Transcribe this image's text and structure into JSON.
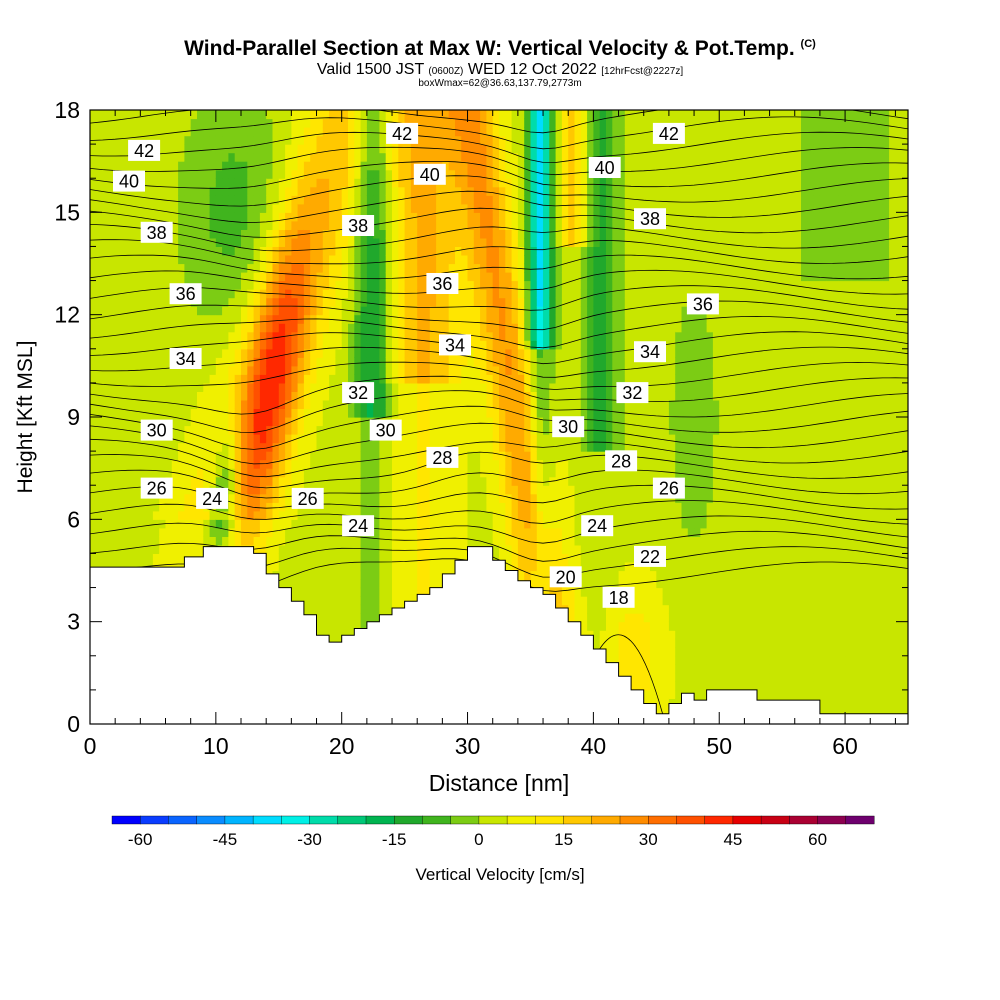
{
  "title": {
    "main": "Wind-Parallel Section at Max W: Vertical Velocity & Pot.Temp.",
    "copyright": "(C)",
    "valid_prefix": "Valid 1500 JST",
    "valid_utc": "(0600Z)",
    "valid_date": "WED 12 Oct 2022",
    "forecast": "[12hrFcst@2227z]",
    "box_info": "boxWmax=62@36.63,137.79,2773m"
  },
  "chart_data": {
    "type": "heatmap",
    "xlabel": "Distance [nm]",
    "ylabel": "Height [Kft MSL]",
    "xlim": [
      0,
      65
    ],
    "ylim": [
      0,
      18
    ],
    "x_ticks": [
      0,
      10,
      20,
      30,
      40,
      50,
      60
    ],
    "y_ticks": [
      0,
      3,
      6,
      9,
      12,
      15,
      18
    ],
    "fill_variable": "Vertical Velocity [cm/s]",
    "contour_variable": "Potential Temperature",
    "colorbar": {
      "label": "Vertical Velocity [cm/s]",
      "ticks": [
        -60,
        -45,
        -30,
        -15,
        0,
        15,
        30,
        45,
        60
      ],
      "levels": [
        -65,
        -60,
        -55,
        -50,
        -45,
        -40,
        -35,
        -30,
        -25,
        -20,
        -15,
        -10,
        -5,
        0,
        5,
        10,
        15,
        20,
        25,
        30,
        35,
        40,
        45,
        50,
        55,
        60,
        65,
        70
      ],
      "colors": [
        "#0000ff",
        "#0a3cff",
        "#0a64ff",
        "#0a8cff",
        "#00b4ff",
        "#00dcff",
        "#00f0e6",
        "#00dcaa",
        "#00c878",
        "#00b450",
        "#20a82c",
        "#40b41e",
        "#7ccc14",
        "#c8e600",
        "#f0f000",
        "#ffe600",
        "#ffc800",
        "#ffaa00",
        "#ff8c00",
        "#ff6e00",
        "#ff5000",
        "#ff2800",
        "#e60000",
        "#c80014",
        "#aa0032",
        "#8c0050",
        "#6e006e"
      ]
    },
    "terrain": [
      [
        0,
        4.6
      ],
      [
        7.5,
        4.6
      ],
      [
        7.5,
        4.9
      ],
      [
        9,
        4.9
      ],
      [
        9,
        5.2
      ],
      [
        13,
        5.2
      ],
      [
        13,
        5.0
      ],
      [
        14,
        5.0
      ],
      [
        14,
        4.4
      ],
      [
        15,
        4.4
      ],
      [
        15,
        4.0
      ],
      [
        16,
        4.0
      ],
      [
        16,
        3.6
      ],
      [
        17,
        3.6
      ],
      [
        17,
        3.2
      ],
      [
        18,
        3.2
      ],
      [
        18,
        2.6
      ],
      [
        19,
        2.6
      ],
      [
        19,
        2.4
      ],
      [
        20,
        2.4
      ],
      [
        20,
        2.6
      ],
      [
        21,
        2.6
      ],
      [
        21,
        2.8
      ],
      [
        22,
        2.8
      ],
      [
        22,
        3.0
      ],
      [
        23,
        3.0
      ],
      [
        23,
        3.2
      ],
      [
        24,
        3.2
      ],
      [
        24,
        3.4
      ],
      [
        25,
        3.4
      ],
      [
        25,
        3.6
      ],
      [
        26,
        3.6
      ],
      [
        26,
        3.8
      ],
      [
        27,
        3.8
      ],
      [
        27,
        4.0
      ],
      [
        28,
        4.0
      ],
      [
        28,
        4.4
      ],
      [
        29,
        4.4
      ],
      [
        29,
        4.8
      ],
      [
        30,
        4.8
      ],
      [
        30,
        5.2
      ],
      [
        32,
        5.2
      ],
      [
        32,
        4.8
      ],
      [
        33,
        4.8
      ],
      [
        33,
        4.5
      ],
      [
        34,
        4.5
      ],
      [
        34,
        4.2
      ],
      [
        35,
        4.2
      ],
      [
        35,
        4.0
      ],
      [
        36,
        4.0
      ],
      [
        36,
        3.8
      ],
      [
        37,
        3.8
      ],
      [
        37,
        3.4
      ],
      [
        38,
        3.4
      ],
      [
        38,
        3.0
      ],
      [
        39,
        3.0
      ],
      [
        39,
        2.6
      ],
      [
        40,
        2.6
      ],
      [
        40,
        2.2
      ],
      [
        41,
        2.2
      ],
      [
        41,
        1.8
      ],
      [
        42,
        1.8
      ],
      [
        42,
        1.4
      ],
      [
        43,
        1.4
      ],
      [
        43,
        1.0
      ],
      [
        44,
        1.0
      ],
      [
        44,
        0.6
      ],
      [
        45,
        0.6
      ],
      [
        45,
        0.3
      ],
      [
        46,
        0.3
      ],
      [
        46,
        0.6
      ],
      [
        47,
        0.6
      ],
      [
        47,
        0.9
      ],
      [
        48,
        0.9
      ],
      [
        48,
        0.7
      ],
      [
        49,
        0.7
      ],
      [
        49,
        1.0
      ],
      [
        53,
        1.0
      ],
      [
        53,
        0.7
      ],
      [
        58,
        0.7
      ],
      [
        58,
        0.3
      ],
      [
        65,
        0.3
      ]
    ],
    "contour_labels": [
      {
        "text": "42",
        "x": 4.3,
        "y": 16.8
      },
      {
        "text": "42",
        "x": 24.8,
        "y": 17.3
      },
      {
        "text": "42",
        "x": 46.0,
        "y": 17.3
      },
      {
        "text": "40",
        "x": 3.1,
        "y": 15.9
      },
      {
        "text": "40",
        "x": 27.0,
        "y": 16.1
      },
      {
        "text": "40",
        "x": 40.9,
        "y": 16.3
      },
      {
        "text": "38",
        "x": 5.3,
        "y": 14.4
      },
      {
        "text": "38",
        "x": 21.3,
        "y": 14.6
      },
      {
        "text": "38",
        "x": 44.5,
        "y": 14.8
      },
      {
        "text": "36",
        "x": 7.6,
        "y": 12.6
      },
      {
        "text": "36",
        "x": 28.0,
        "y": 12.9
      },
      {
        "text": "36",
        "x": 48.7,
        "y": 12.3
      },
      {
        "text": "34",
        "x": 7.6,
        "y": 10.7
      },
      {
        "text": "34",
        "x": 29.0,
        "y": 11.1
      },
      {
        "text": "34",
        "x": 44.5,
        "y": 10.9
      },
      {
        "text": "32",
        "x": 21.3,
        "y": 9.7
      },
      {
        "text": "32",
        "x": 43.1,
        "y": 9.7
      },
      {
        "text": "30",
        "x": 5.3,
        "y": 8.6
      },
      {
        "text": "30",
        "x": 23.5,
        "y": 8.6
      },
      {
        "text": "30",
        "x": 38.0,
        "y": 8.7
      },
      {
        "text": "28",
        "x": 28.0,
        "y": 7.8
      },
      {
        "text": "28",
        "x": 42.2,
        "y": 7.7
      },
      {
        "text": "26",
        "x": 5.3,
        "y": 6.9
      },
      {
        "text": "26",
        "x": 17.3,
        "y": 6.6
      },
      {
        "text": "26",
        "x": 46.0,
        "y": 6.9
      },
      {
        "text": "24",
        "x": 9.7,
        "y": 6.6
      },
      {
        "text": "24",
        "x": 21.3,
        "y": 5.8
      },
      {
        "text": "24",
        "x": 40.3,
        "y": 5.8
      },
      {
        "text": "22",
        "x": 44.5,
        "y": 4.9
      },
      {
        "text": "20",
        "x": 37.8,
        "y": 4.3
      },
      {
        "text": "18",
        "x": 42.0,
        "y": 3.7
      }
    ]
  }
}
